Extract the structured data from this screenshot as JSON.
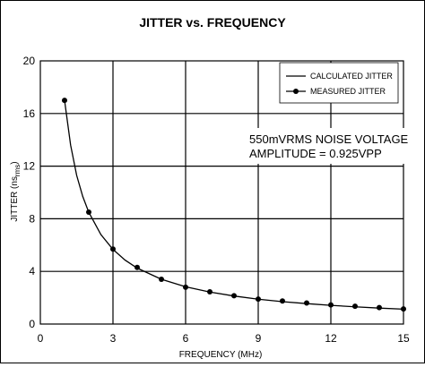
{
  "chart_data": {
    "type": "line",
    "title": "JITTER vs. FREQUENCY",
    "xlabel": "FREQUENCY (MHz)",
    "ylabel": {
      "main": "JITTER (ns",
      "sub": "rms",
      "close": ")"
    },
    "xlim": [
      0,
      15
    ],
    "ylim": [
      0,
      20
    ],
    "x_ticks": [
      0,
      3,
      6,
      9,
      12,
      15
    ],
    "y_ticks": [
      0,
      4,
      8,
      12,
      16,
      20
    ],
    "grid": true,
    "legend_position": "top-right",
    "annotation": [
      "550mVRMS NOISE VOLTAGE",
      "AMPLITUDE = 0.925VPP"
    ],
    "series": [
      {
        "name": "CALCULATED JITTER",
        "style": "line",
        "color": "#000000",
        "x": [
          1,
          1.25,
          1.5,
          1.75,
          2,
          2.5,
          3,
          3.5,
          4,
          5,
          6,
          7,
          8,
          9,
          10,
          11,
          12,
          13,
          14,
          15
        ],
        "y": [
          17.0,
          13.6,
          11.3,
          9.7,
          8.5,
          6.8,
          5.67,
          4.86,
          4.25,
          3.4,
          2.83,
          2.43,
          2.13,
          1.89,
          1.7,
          1.55,
          1.42,
          1.31,
          1.21,
          1.13
        ]
      },
      {
        "name": "MEASURED JITTER",
        "style": "line-marker",
        "color": "#000000",
        "x": [
          1,
          2,
          3,
          4,
          5,
          6,
          7,
          8,
          9,
          10,
          11,
          12,
          13,
          14,
          15
        ],
        "y": [
          17.0,
          8.5,
          5.7,
          4.3,
          3.4,
          2.8,
          2.45,
          2.15,
          1.9,
          1.75,
          1.6,
          1.45,
          1.35,
          1.25,
          1.15
        ]
      }
    ]
  }
}
